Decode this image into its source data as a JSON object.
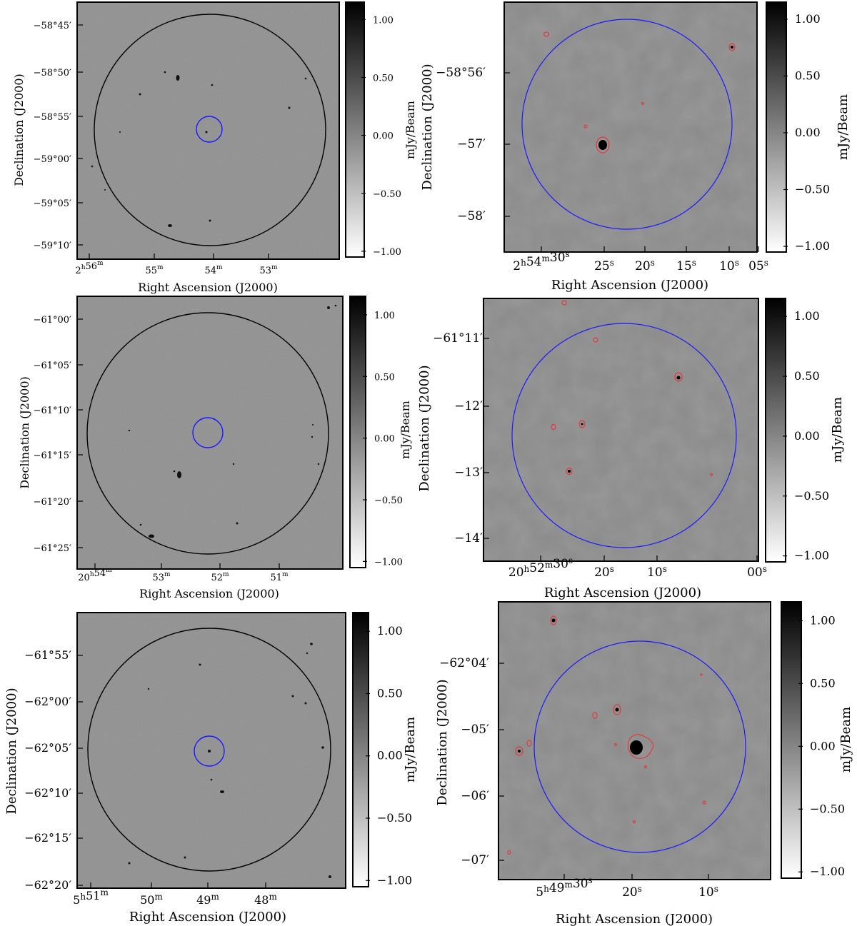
{
  "common": {
    "xlabel": "Right Ascension (J2000)",
    "ylabel": "Declination (J2000)",
    "cbar_label": "mJy/Beam",
    "cbar_ticks": [
      "1.00",
      "0.50",
      "0.00",
      "−0.50",
      "−1.00"
    ],
    "cbar_range": [
      -1.05,
      1.15
    ]
  },
  "colors": {
    "field_circle": "#000000",
    "zoom_circle": "#1a1aff",
    "contour": "#e23a3a"
  },
  "panels": [
    {
      "y_ticks": [
        "−58°45′",
        "−58°50′",
        "−58°55′",
        "−59°00′",
        "−59°05′",
        "−59°10′"
      ],
      "x_ticks": [
        {
          "h": "2",
          "m": "56"
        },
        {
          "m": "55"
        },
        {
          "m": "54"
        },
        {
          "m": "53"
        }
      ]
    },
    {
      "y_ticks": [
        "−58°56′",
        "−57′",
        "−58′"
      ],
      "x_ticks": [
        {
          "h": "2",
          "m": "54",
          "s": "30"
        },
        {
          "s": "25"
        },
        {
          "s": "20"
        },
        {
          "s": "15"
        },
        {
          "s": "10"
        },
        {
          "s": "05"
        }
      ]
    },
    {
      "y_ticks": [
        "−61°00′",
        "−61°05′",
        "−61°10′",
        "−61°15′",
        "−61°20′",
        "−61°25′"
      ],
      "x_ticks": [
        {
          "h": "20",
          "m": "54"
        },
        {
          "m": "53"
        },
        {
          "m": "52"
        },
        {
          "m": "51"
        }
      ]
    },
    {
      "y_ticks": [
        "−61°11′",
        "−12′",
        "−13′",
        "−14′"
      ],
      "x_ticks": [
        {
          "h": "20",
          "m": "52",
          "s": "30"
        },
        {
          "s": "20"
        },
        {
          "s": "10"
        },
        {
          "s": "00"
        }
      ]
    },
    {
      "y_ticks": [
        "−61°55′",
        "−62°00′",
        "−62°05′",
        "−62°10′",
        "−62°15′",
        "−62°20′"
      ],
      "x_ticks": [
        {
          "h": "5",
          "m": "51"
        },
        {
          "m": "50"
        },
        {
          "m": "49"
        },
        {
          "m": "48"
        }
      ]
    },
    {
      "y_ticks": [
        "−62°04′",
        "−05′",
        "−06′",
        "−07′"
      ],
      "x_ticks": [
        {
          "h": "5",
          "m": "49",
          "s": "30"
        },
        {
          "s": "20"
        },
        {
          "s": "10"
        }
      ]
    }
  ]
}
